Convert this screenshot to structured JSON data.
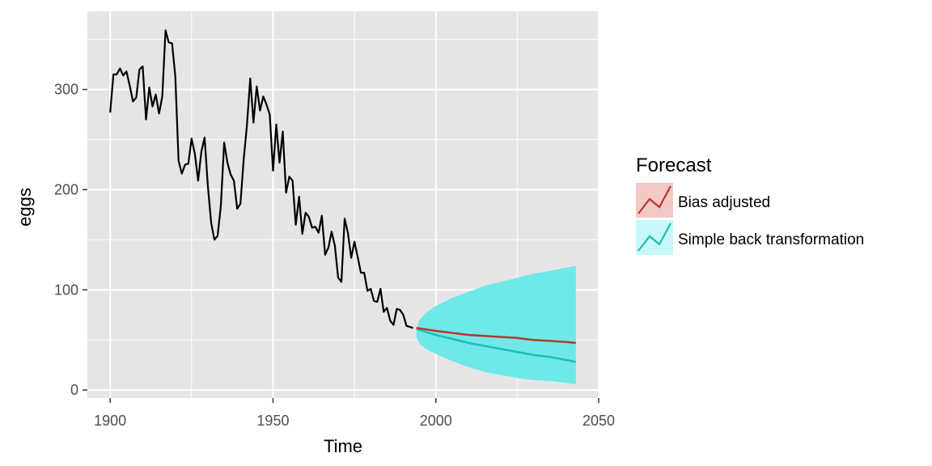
{
  "chart_data": {
    "type": "line",
    "title": "",
    "xlabel": "Time",
    "ylabel": "eggs",
    "xlim": [
      1893,
      2050
    ],
    "ylim": [
      -8,
      378
    ],
    "x_ticks": [
      1900,
      1950,
      2000,
      2050
    ],
    "y_ticks": [
      0,
      100,
      200,
      300
    ],
    "grid": true,
    "legend": {
      "title": "Forecast",
      "position": "right",
      "entries": [
        "Bias adjusted",
        "Simple back transformation"
      ]
    },
    "colors": {
      "history": "#000000",
      "bias_adjusted": "#b5372b",
      "simple_back_transformation": "#1cbcbc",
      "interval_fill": "#6ee8e8",
      "legend_bias_fill": "#f4c8c4",
      "legend_simple_fill": "#c8f8f8",
      "panel": "#e5e5e5",
      "grid": "#ffffff"
    },
    "history": {
      "x": [
        1900,
        1901,
        1902,
        1903,
        1904,
        1905,
        1906,
        1907,
        1908,
        1909,
        1910,
        1911,
        1912,
        1913,
        1914,
        1915,
        1916,
        1917,
        1918,
        1919,
        1920,
        1921,
        1922,
        1923,
        1924,
        1925,
        1926,
        1927,
        1928,
        1929,
        1930,
        1931,
        1932,
        1933,
        1934,
        1935,
        1936,
        1937,
        1938,
        1939,
        1940,
        1941,
        1942,
        1943,
        1944,
        1945,
        1946,
        1947,
        1948,
        1949,
        1950,
        1951,
        1952,
        1953,
        1954,
        1955,
        1956,
        1957,
        1958,
        1959,
        1960,
        1961,
        1962,
        1963,
        1964,
        1965,
        1966,
        1967,
        1968,
        1969,
        1970,
        1971,
        1972,
        1973,
        1974,
        1975,
        1976,
        1977,
        1978,
        1979,
        1980,
        1981,
        1982,
        1983,
        1984,
        1985,
        1986,
        1987,
        1988,
        1989,
        1990,
        1991,
        1992,
        1993
      ],
      "y": [
        277,
        315,
        315,
        321,
        314,
        318,
        304,
        288,
        292,
        320,
        323,
        270,
        302,
        283,
        295,
        276,
        293,
        359,
        347,
        346,
        313,
        229,
        216,
        225,
        226,
        251,
        236,
        209,
        238,
        252,
        204,
        167,
        150,
        154,
        184,
        247,
        227,
        215,
        209,
        181,
        186,
        230,
        264,
        311,
        267,
        303,
        279,
        293,
        285,
        275,
        219,
        265,
        227,
        258,
        197,
        213,
        209,
        165,
        193,
        156,
        177,
        173,
        162,
        163,
        157,
        174,
        135,
        142,
        158,
        144,
        112,
        108,
        171,
        157,
        132,
        148,
        133,
        117,
        117,
        99,
        101,
        89,
        88,
        101,
        78,
        82,
        69,
        65,
        81,
        80,
        75,
        64,
        63,
        62
      ]
    },
    "series": [
      {
        "name": "Bias adjusted",
        "x": [
          1994,
          2000,
          2005,
          2010,
          2015,
          2020,
          2025,
          2030,
          2035,
          2040,
          2043
        ],
        "y": [
          62,
          59,
          57,
          55,
          54,
          53,
          52,
          50,
          49,
          48,
          47
        ]
      },
      {
        "name": "Simple back transformation",
        "x": [
          1994,
          2000,
          2005,
          2010,
          2015,
          2020,
          2025,
          2030,
          2035,
          2040,
          2043
        ],
        "y": [
          61,
          55,
          51,
          47,
          44,
          41,
          38,
          35,
          33,
          30,
          28
        ]
      }
    ],
    "interval": {
      "x": [
        1994,
        1995,
        1997,
        2000,
        2005,
        2010,
        2015,
        2020,
        2025,
        2030,
        2035,
        2040,
        2043
      ],
      "lower": [
        53,
        46,
        41,
        36,
        29,
        23,
        18,
        15,
        12,
        10,
        9,
        7,
        6
      ],
      "upper": [
        60,
        70,
        77,
        84,
        92,
        98,
        104,
        108,
        112,
        116,
        119,
        122,
        124
      ]
    }
  }
}
